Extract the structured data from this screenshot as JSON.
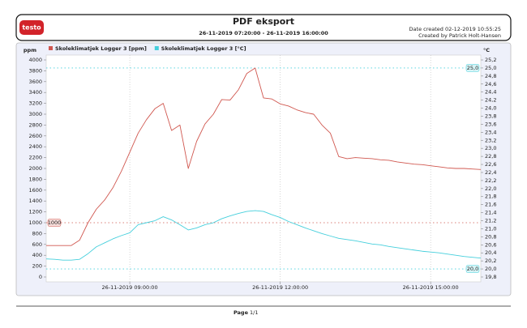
{
  "header": {
    "logo": "testo",
    "title": "PDF eksport",
    "subtitle": "26-11-2019 07:20:00 - 26-11-2019 16:00:00",
    "date_created": "Date created 02-12-2019 10:55:25",
    "created_by": "Created by Patrick Holt-Hansen"
  },
  "chart_data": {
    "type": "line",
    "ylabel": "ppm",
    "y2label": "°C",
    "x": [
      "26-11-2019 07:20:00",
      "26-11-2019 07:30:00",
      "26-11-2019 07:40:00",
      "26-11-2019 07:50:00",
      "26-11-2019 08:00:00",
      "26-11-2019 08:10:00",
      "26-11-2019 08:20:00",
      "26-11-2019 08:30:00",
      "26-11-2019 08:40:00",
      "26-11-2019 08:50:00",
      "26-11-2019 09:00:00",
      "26-11-2019 09:10:00",
      "26-11-2019 09:20:00",
      "26-11-2019 09:30:00",
      "26-11-2019 09:40:00",
      "26-11-2019 09:50:00",
      "26-11-2019 10:00:00",
      "26-11-2019 10:10:00",
      "26-11-2019 10:20:00",
      "26-11-2019 10:30:00",
      "26-11-2019 10:40:00",
      "26-11-2019 10:50:00",
      "26-11-2019 11:00:00",
      "26-11-2019 11:10:00",
      "26-11-2019 11:20:00",
      "26-11-2019 11:30:00",
      "26-11-2019 11:40:00",
      "26-11-2019 11:50:00",
      "26-11-2019 12:00:00",
      "26-11-2019 12:10:00",
      "26-11-2019 12:20:00",
      "26-11-2019 12:30:00",
      "26-11-2019 12:40:00",
      "26-11-2019 12:50:00",
      "26-11-2019 13:00:00",
      "26-11-2019 13:10:00",
      "26-11-2019 13:20:00",
      "26-11-2019 13:30:00",
      "26-11-2019 13:40:00",
      "26-11-2019 13:50:00",
      "26-11-2019 14:00:00",
      "26-11-2019 14:10:00",
      "26-11-2019 14:20:00",
      "26-11-2019 14:30:00",
      "26-11-2019 14:40:00",
      "26-11-2019 14:50:00",
      "26-11-2019 15:00:00",
      "26-11-2019 15:10:00",
      "26-11-2019 15:20:00",
      "26-11-2019 15:30:00",
      "26-11-2019 15:40:00",
      "26-11-2019 15:50:00",
      "26-11-2019 16:00:00"
    ],
    "series": [
      {
        "name": "Skoleklimatjek Logger 3 [ppm]",
        "color": "#d0574f",
        "axis": "y",
        "values": [
          580,
          580,
          580,
          580,
          680,
          1000,
          1250,
          1420,
          1650,
          1950,
          2300,
          2650,
          2900,
          3100,
          3200,
          2700,
          2800,
          2000,
          2500,
          2820,
          3000,
          3270,
          3260,
          3450,
          3750,
          3850,
          3300,
          3280,
          3190,
          3150,
          3080,
          3030,
          3000,
          2800,
          2650,
          2220,
          2180,
          2200,
          2190,
          2180,
          2160,
          2150,
          2120,
          2100,
          2080,
          2070,
          2050,
          2030,
          2010,
          2000,
          2000,
          1990,
          1980
        ]
      },
      {
        "name": "Skoleklimatjek Logger 3 [°C]",
        "color": "#45cfdc",
        "axis": "y2",
        "values": [
          20.25,
          20.24,
          20.22,
          20.22,
          20.24,
          20.38,
          20.55,
          20.65,
          20.75,
          20.83,
          20.9,
          21.1,
          21.15,
          21.2,
          21.3,
          21.22,
          21.1,
          20.97,
          21.02,
          21.1,
          21.15,
          21.25,
          21.32,
          21.38,
          21.43,
          21.45,
          21.43,
          21.35,
          21.28,
          21.18,
          21.1,
          21.02,
          20.95,
          20.88,
          20.82,
          20.76,
          20.73,
          20.7,
          20.66,
          20.62,
          20.6,
          20.56,
          20.53,
          20.5,
          20.47,
          20.44,
          20.42,
          20.4,
          20.37,
          20.34,
          20.31,
          20.29,
          20.27
        ]
      }
    ],
    "xlim": [
      "26-11-2019 07:20:00",
      "26-11-2019 16:00:00"
    ],
    "xticks": [
      "26-11-2019 09:00:00",
      "26-11-2019 12:00:00",
      "26-11-2019 15:00:00"
    ],
    "xgrid": true,
    "ylim": [
      0,
      4000
    ],
    "yticks": [
      0,
      200,
      400,
      600,
      800,
      1000,
      1200,
      1400,
      1600,
      1800,
      2000,
      2200,
      2400,
      2600,
      2800,
      3000,
      3200,
      3400,
      3600,
      3800,
      4000
    ],
    "y2lim": [
      19.8,
      25.2
    ],
    "y2ticks": [
      {
        "value": 19.8,
        "label": "19,8"
      },
      {
        "value": 20.0,
        "label": "20,0"
      },
      {
        "value": 20.2,
        "label": "20,2"
      },
      {
        "value": 20.4,
        "label": "20,4"
      },
      {
        "value": 20.6,
        "label": "20,6"
      },
      {
        "value": 20.8,
        "label": "20,8"
      },
      {
        "value": 21.0,
        "label": "21,0"
      },
      {
        "value": 21.2,
        "label": "21,2"
      },
      {
        "value": 21.4,
        "label": "21,4"
      },
      {
        "value": 21.6,
        "label": "21,6"
      },
      {
        "value": 21.8,
        "label": "21,8"
      },
      {
        "value": 22.0,
        "label": "22,0"
      },
      {
        "value": 22.2,
        "label": "22,2"
      },
      {
        "value": 22.4,
        "label": "22,4"
      },
      {
        "value": 22.6,
        "label": "22,6"
      },
      {
        "value": 22.8,
        "label": "22,8"
      },
      {
        "value": 23.0,
        "label": "23,0"
      },
      {
        "value": 23.2,
        "label": "23,2"
      },
      {
        "value": 23.4,
        "label": "23,4"
      },
      {
        "value": 23.6,
        "label": "23,6"
      },
      {
        "value": 23.8,
        "label": "23,8"
      },
      {
        "value": 24.0,
        "label": "24,0"
      },
      {
        "value": 24.2,
        "label": "24,2"
      },
      {
        "value": 24.4,
        "label": "24,4"
      },
      {
        "value": 24.6,
        "label": "24,6"
      },
      {
        "value": 24.8,
        "label": "24,8"
      },
      {
        "value": 25.0,
        "label": "25,0"
      },
      {
        "value": 25.2,
        "label": "25,2"
      }
    ],
    "reference_lines": [
      {
        "value": 1000,
        "label": "1000",
        "axis": "y",
        "color": "#d0574f"
      },
      {
        "value": 25.0,
        "label": "25,0",
        "axis": "y2",
        "color": "#45cfdc"
      },
      {
        "value": 20.0,
        "label": "20,0",
        "axis": "y2",
        "color": "#45cfdc"
      }
    ]
  },
  "footer": {
    "label": "Page",
    "page": "1/1"
  }
}
